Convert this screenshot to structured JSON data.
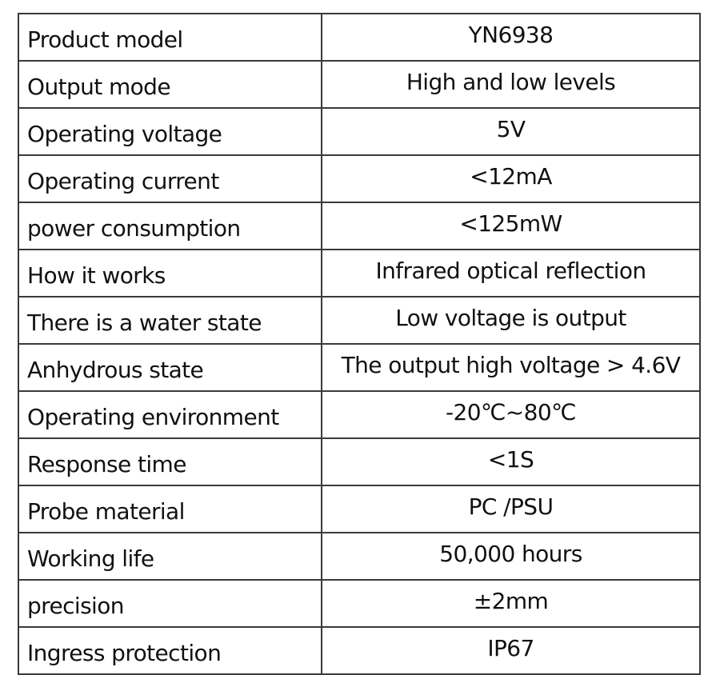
{
  "specs": [
    {
      "label": "Product model",
      "value": "YN6938"
    },
    {
      "label": "Output mode",
      "value": "High and low levels"
    },
    {
      "label": "Operating voltage",
      "value": "5V"
    },
    {
      "label": "Operating current",
      "value": "<12mA"
    },
    {
      "label": "power consumption",
      "value": "<125mW"
    },
    {
      "label": "How it works",
      "value": "Infrared optical reflection"
    },
    {
      "label": "There is a water state",
      "value": "Low voltage is output"
    },
    {
      "label": "Anhydrous state",
      "value": "The output high voltage > 4.6V"
    },
    {
      "label": "Operating environment",
      "value": "-20℃~80℃"
    },
    {
      "label": "Response time",
      "value": "<1S"
    },
    {
      "label": "Probe material",
      "value": "PC /PSU"
    },
    {
      "label": "Working life",
      "value": "50,000 hours"
    },
    {
      "label": "precision",
      "value": "±2mm"
    },
    {
      "label": "Ingress protection",
      "value": "IP67"
    }
  ]
}
